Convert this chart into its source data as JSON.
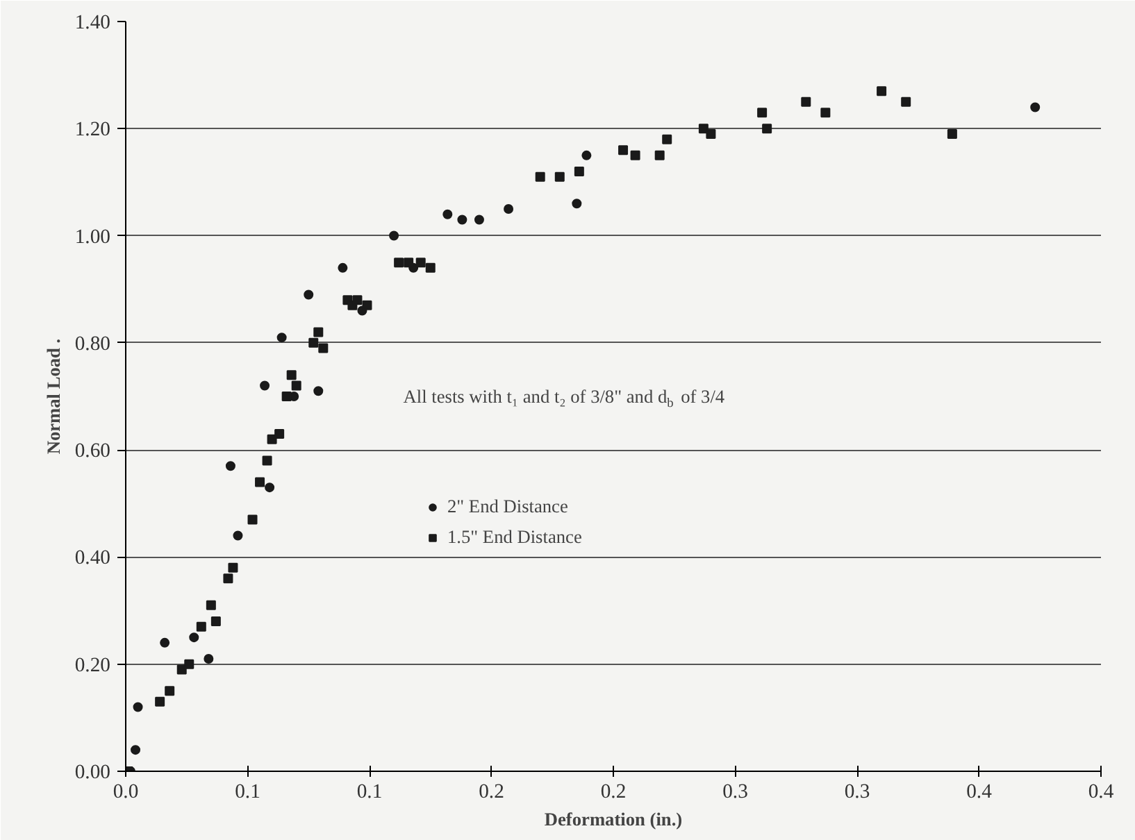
{
  "chart_data": {
    "type": "scatter",
    "xlabel": "Deformation (in.)",
    "ylabel": "Normal Load .",
    "annotations": [
      "All tests with t₁ and t₂ of 3/8\" and d$_{b}$ of 3/4"
    ],
    "xlim": [
      0,
      0.4
    ],
    "ylim": [
      0,
      1.4
    ],
    "xticks": [
      {
        "value": 0,
        "label": "0.0"
      },
      {
        "value": 0.05,
        "label": "0.1"
      },
      {
        "value": 0.1,
        "label": "0.1"
      },
      {
        "value": 0.15,
        "label": "0.2"
      },
      {
        "value": 0.2,
        "label": "0.2"
      },
      {
        "value": 0.25,
        "label": "0.3"
      },
      {
        "value": 0.3,
        "label": "0.3"
      },
      {
        "value": 0.35,
        "label": "0.4"
      },
      {
        "value": 0.4,
        "label": "0.4"
      }
    ],
    "yticks": [
      {
        "value": 0,
        "label": "0.00"
      },
      {
        "value": 0.2,
        "label": "0.20"
      },
      {
        "value": 0.4,
        "label": "0.40"
      },
      {
        "value": 0.6,
        "label": "0.60"
      },
      {
        "value": 0.8,
        "label": "0.80"
      },
      {
        "value": 1.0,
        "label": "1.00"
      },
      {
        "value": 1.2,
        "label": "1.20"
      },
      {
        "value": 1.4,
        "label": "1.40"
      }
    ],
    "grid": "y",
    "legend": "center",
    "series": [
      {
        "name": "2\" End Distance",
        "color": "#1a1a1a",
        "marker": "circle",
        "x": [
          0.002,
          0.004,
          0.005,
          0.016,
          0.028,
          0.034,
          0.043,
          0.046,
          0.059,
          0.057,
          0.064,
          0.069,
          0.079,
          0.075,
          0.089,
          0.097,
          0.11,
          0.118,
          0.132,
          0.138,
          0.145,
          0.157,
          0.185,
          0.189,
          0.373
        ],
        "values": [
          0.0,
          0.04,
          0.12,
          0.24,
          0.25,
          0.21,
          0.57,
          0.44,
          0.53,
          0.72,
          0.81,
          0.7,
          0.71,
          0.89,
          0.94,
          0.86,
          1.0,
          0.94,
          1.04,
          1.03,
          1.03,
          1.05,
          1.06,
          1.15,
          1.24
        ]
      },
      {
        "name": "1.5\" End Distance",
        "color": "#1a1a1a",
        "marker": "square",
        "x": [
          0.001,
          0.014,
          0.018,
          0.023,
          0.026,
          0.031,
          0.035,
          0.037,
          0.042,
          0.044,
          0.052,
          0.055,
          0.058,
          0.06,
          0.063,
          0.066,
          0.068,
          0.07,
          0.077,
          0.079,
          0.081,
          0.091,
          0.093,
          0.095,
          0.099,
          0.112,
          0.116,
          0.121,
          0.125,
          0.17,
          0.178,
          0.186,
          0.204,
          0.209,
          0.219,
          0.222,
          0.237,
          0.24,
          0.261,
          0.263,
          0.279,
          0.287,
          0.31,
          0.32,
          0.339
        ],
        "values": [
          0.0,
          0.13,
          0.15,
          0.19,
          0.2,
          0.27,
          0.31,
          0.28,
          0.36,
          0.38,
          0.47,
          0.54,
          0.58,
          0.62,
          0.63,
          0.7,
          0.74,
          0.72,
          0.8,
          0.82,
          0.79,
          0.88,
          0.87,
          0.88,
          0.87,
          0.95,
          0.95,
          0.95,
          0.94,
          1.11,
          1.11,
          1.12,
          1.16,
          1.15,
          1.15,
          1.18,
          1.2,
          1.19,
          1.23,
          1.2,
          1.25,
          1.23,
          1.27,
          1.25,
          1.19
        ]
      }
    ]
  }
}
